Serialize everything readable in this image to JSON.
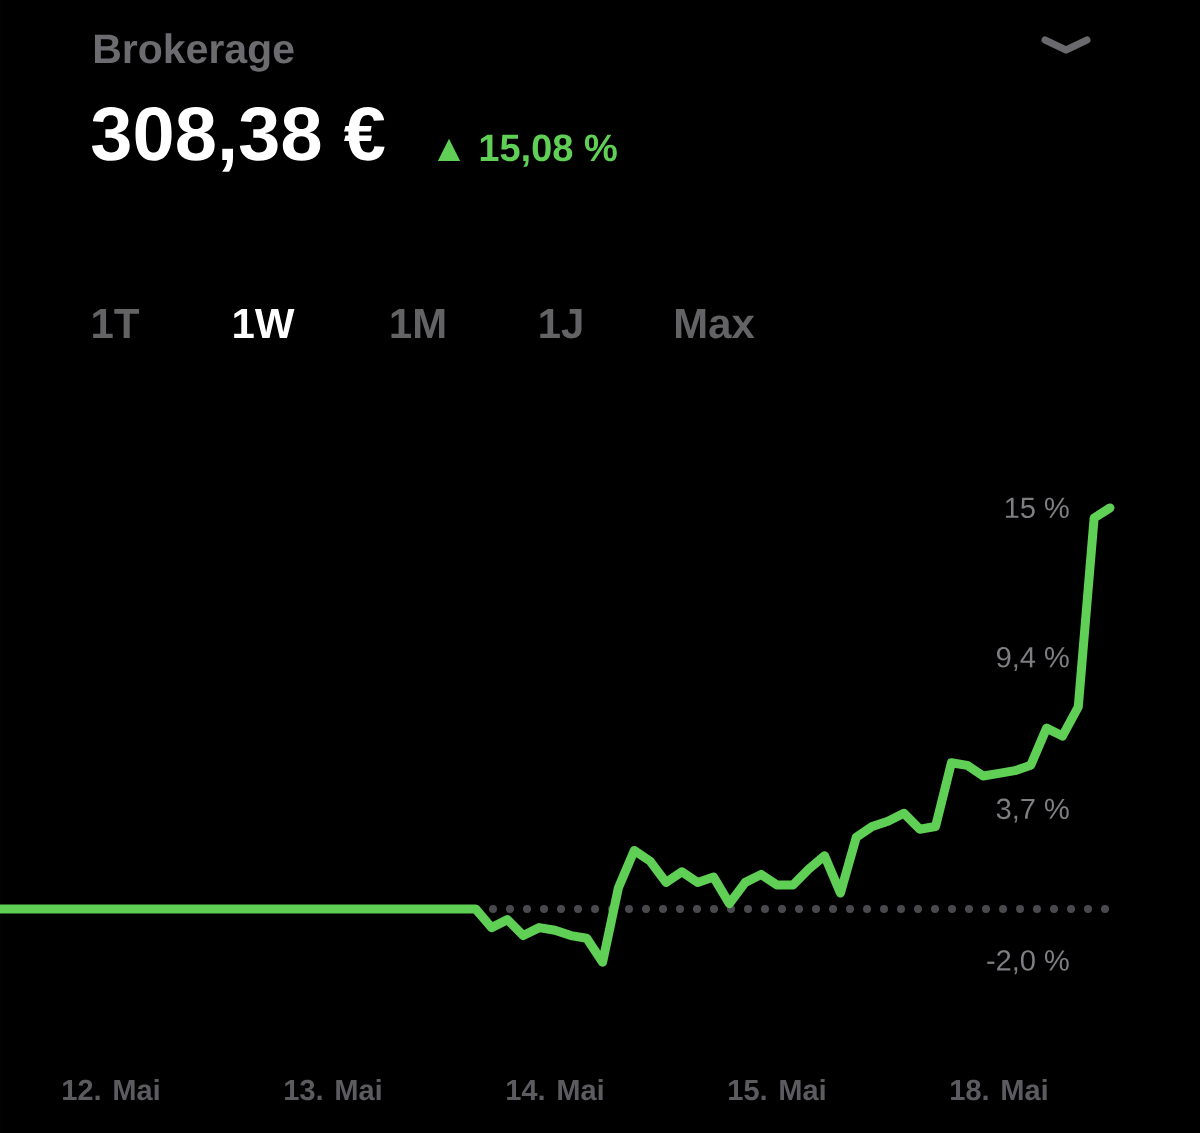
{
  "chart_data": {
    "type": "line",
    "title": "Brokerage",
    "subtitle": "308,38 €",
    "annotations": [
      "▲ 15,08 %",
      "1T",
      "1W",
      "1M",
      "1J",
      "Max"
    ],
    "categories": [
      null,
      null,
      null,
      null,
      null,
      null,
      null,
      "12. Mai",
      null,
      null,
      null,
      null,
      null,
      null,
      null,
      null,
      null,
      null,
      null,
      null,
      null,
      "13. Mai",
      null,
      null,
      null,
      null,
      null,
      null,
      null,
      null,
      null,
      null,
      null,
      null,
      null,
      "14. Mai",
      null,
      null,
      null,
      null,
      null,
      null,
      null,
      null,
      null,
      null,
      null,
      null,
      null,
      "15. Mai",
      null,
      null,
      null,
      null,
      null,
      null,
      null,
      null,
      null,
      null,
      null,
      null,
      null,
      "18. Mai",
      null,
      null,
      null,
      null,
      null,
      null,
      null
    ],
    "values": [
      0,
      0,
      0,
      0,
      0,
      0,
      0,
      0,
      0,
      0,
      0,
      0,
      0,
      0,
      0,
      0,
      0,
      0,
      0,
      0,
      0,
      0,
      0,
      0,
      0,
      0,
      0,
      0,
      0,
      0,
      0,
      -0.7,
      -0.4,
      -1.0,
      -0.7,
      -0.8,
      -1.0,
      -1.1,
      -2.0,
      0.8,
      2.2,
      1.8,
      1.0,
      1.4,
      1.0,
      1.2,
      0.2,
      1.0,
      1.3,
      0.9,
      0.9,
      1.5,
      2.0,
      0.6,
      2.7,
      3.1,
      3.3,
      3.6,
      3.0,
      3.1,
      5.5,
      5.4,
      5.0,
      5.1,
      5.2,
      5.4,
      6.8,
      6.5,
      7.6,
      14.7,
      15.08
    ],
    "color": "#5fcf55",
    "marker": "none",
    "line_style": "solid",
    "ylim": [
      -2.0,
      15.08
    ],
    "yticks": [
      {
        "value": 15.08,
        "label": "15 %"
      },
      {
        "value": 9.4,
        "label": "9,4 %"
      },
      {
        "value": 3.7,
        "label": "3,7 %"
      },
      {
        "value": -2.0,
        "label": "-2,0 %"
      }
    ],
    "ref_lines": [
      {
        "axis": "y",
        "value": 0,
        "color": "#4a4a4e",
        "line_style": "dotted"
      }
    ]
  }
}
